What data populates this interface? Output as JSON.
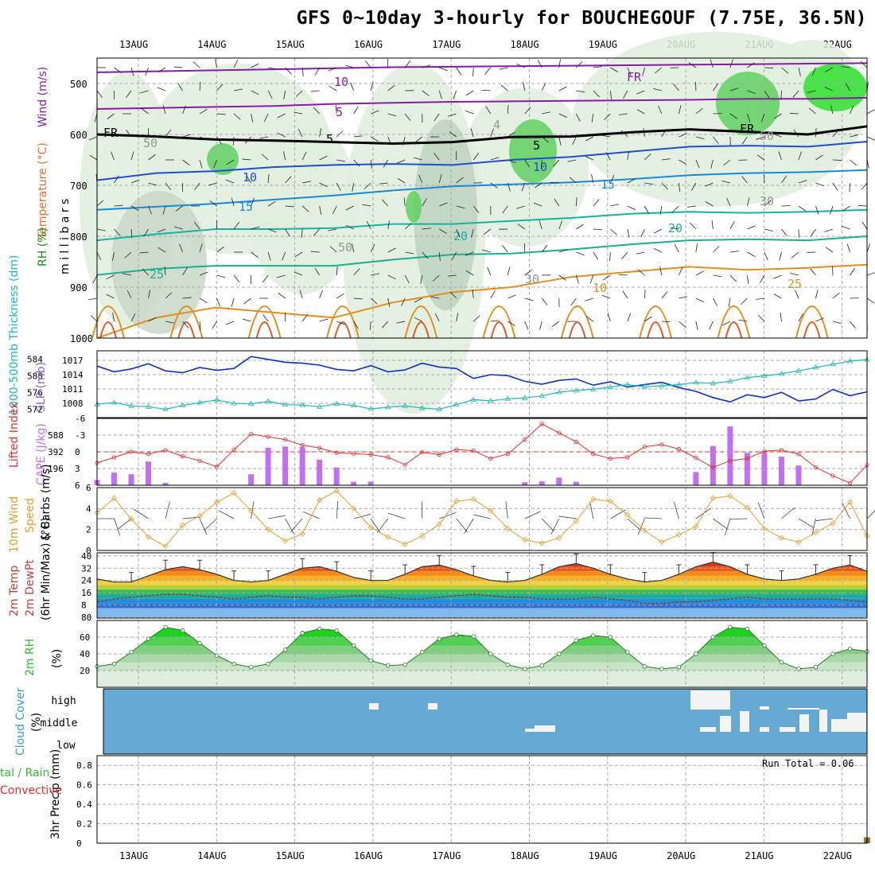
{
  "title": "GFS 0~10day 3-hourly for BOUCHEGOUF (7.75E, 36.5N)",
  "colors": {
    "temp_lines": "#8a1aa8",
    "freezing": "#000000",
    "temp_mid": "#1f4fd0",
    "temp_warm": "#13b5a0",
    "temp_hot": "#e09020",
    "rh_fill": "#2ec02e",
    "slp": "#1030c8",
    "thickness": "#20b8b8",
    "li": "#e03030",
    "cape": "#c070f0",
    "wind": "#e0a030",
    "cloud": "#66aad4",
    "precip_conv": "#e03030",
    "precip_total": "#2ec02e"
  },
  "chart_data": [
    {
      "type": "heatmap",
      "panel": "upper-air",
      "ylabel_parts": [
        "Wind (m/s)",
        "Temperature (°C)",
        "RH (%)"
      ],
      "ylabel_units": "m i l l i b a r s",
      "x_ticks": [
        "13AUG",
        "14AUG",
        "15AUG",
        "16AUG",
        "17AUG",
        "18AUG",
        "19AUG",
        "20AUG",
        "21AUG",
        "22AUG"
      ],
      "y_ticks": [
        "500",
        "600",
        "700",
        "800",
        "900",
        "1000"
      ],
      "ylim": [
        1000,
        450
      ],
      "contour_labels": [
        "10",
        "5",
        "FR",
        "5",
        "10",
        "15",
        "20",
        "25",
        "10",
        "FR",
        "FR",
        "5",
        "10",
        "15",
        "20",
        "25",
        "4",
        "50",
        "50",
        "50",
        "30",
        "30"
      ],
      "isotherms": [
        {
          "level": "-10",
          "p": [
            478,
            476,
            474,
            472,
            470,
            468,
            467,
            466,
            465,
            464,
            463,
            462,
            461,
            460
          ]
        },
        {
          "level": "-5",
          "p": [
            550,
            548,
            546,
            544,
            540,
            538,
            536,
            535,
            534,
            533,
            532,
            530,
            530,
            528
          ]
        },
        {
          "level": "FR",
          "p": [
            600,
            604,
            610,
            612,
            615,
            618,
            615,
            605,
            604,
            596,
            590,
            595,
            600,
            584
          ]
        },
        {
          "level": "5",
          "p": [
            690,
            676,
            672,
            664,
            660,
            658,
            660,
            650,
            644,
            634,
            624,
            622,
            624,
            614
          ]
        },
        {
          "level": "10",
          "p": [
            748,
            742,
            736,
            728,
            720,
            710,
            702,
            698,
            694,
            688,
            680,
            676,
            674,
            670
          ]
        },
        {
          "level": "15",
          "p": [
            808,
            796,
            786,
            786,
            784,
            776,
            776,
            770,
            764,
            756,
            752,
            754,
            752,
            748
          ]
        },
        {
          "level": "20",
          "p": [
            876,
            864,
            858,
            858,
            858,
            846,
            836,
            834,
            826,
            816,
            808,
            806,
            808,
            800
          ]
        },
        {
          "level": "25",
          "p": [
            1000,
            960,
            940,
            950,
            960,
            930,
            910,
            900,
            880,
            870,
            860,
            866,
            862,
            856
          ]
        }
      ]
    },
    {
      "type": "line",
      "panel": "slp-thickness",
      "left_ylabel": "1000-500mb Thickness (dm)",
      "right_ylabel": "SLP (mb)",
      "left_ticks": [
        "584",
        "580",
        "576",
        "572"
      ],
      "right_ticks": [
        "1017",
        "1014",
        "1011",
        "1008"
      ],
      "ylim_thickness": [
        570,
        586
      ],
      "ylim_slp": [
        1005,
        1019
      ],
      "series": [
        {
          "name": "SLP",
          "values": [
            1015.8,
            1014.6,
            1015.2,
            1016.3,
            1014.8,
            1014.4,
            1015.5,
            1014.9,
            1015.3,
            1017.8,
            1017.2,
            1016.6,
            1016.4,
            1016.0,
            1015.1,
            1014.8,
            1015.9,
            1014.6,
            1015.0,
            1016.4,
            1015.6,
            1015.3,
            1013.2,
            1014.0,
            1013.8,
            1012.6,
            1012.0,
            1012.8,
            1013.1,
            1011.8,
            1012.5,
            1011.4,
            1011.9,
            1012.4,
            1011.3,
            1010.5,
            1009.2,
            1008.3,
            1009.8,
            1009.2,
            1010.3,
            1008.5,
            1008.9,
            1010.9,
            1009.6,
            1010.4
          ]
        },
        {
          "name": "Thickness",
          "values": [
            573.2,
            573.6,
            572.8,
            572.6,
            572.0,
            572.9,
            573.6,
            574.2,
            573.4,
            573.3,
            573.9,
            573.1,
            573.0,
            572.6,
            573.3,
            572.9,
            572.1,
            572.5,
            572.8,
            572.3,
            572.0,
            573.1,
            574.3,
            574.0,
            574.5,
            574.7,
            575.2,
            576.1,
            576.5,
            576.8,
            577.3,
            577.9,
            577.4,
            577.6,
            577.9,
            578.4,
            578.2,
            578.7,
            579.6,
            580.0,
            580.5,
            581.2,
            582.0,
            582.8,
            583.5,
            583.9
          ]
        }
      ]
    },
    {
      "type": "bar",
      "panel": "lifted-index-cape",
      "left_ylabel": "Lifted Index",
      "right_ylabel": "CAPE (J/kg)",
      "left_ticks": [
        "-6",
        "-3",
        "0",
        "3",
        "6"
      ],
      "right_ticks": [
        "588",
        "392",
        "196"
      ],
      "ylim_li": [
        6,
        -6
      ],
      "ylim_cape": [
        0,
        784
      ],
      "li": [
        2.0,
        1.0,
        0.0,
        0.4,
        -0.3,
        0.8,
        1.6,
        2.7,
        -0.4,
        -3.2,
        -2.7,
        -2.2,
        -1.2,
        -0.7,
        0.2,
        0.3,
        0.5,
        1.0,
        2.3,
        0.1,
        0.5,
        -0.4,
        -0.2,
        1.2,
        0.4,
        -2.2,
        -5.0,
        -3.4,
        -1.8,
        0.4,
        1.2,
        1.0,
        -0.9,
        -1.3,
        -0.5,
        1.1,
        2.8,
        1.6,
        1.2,
        -0.1,
        -0.3,
        0.4,
        2.8,
        4.3,
        5.6,
        2.4
      ],
      "cape": [
        62,
        148,
        129,
        278,
        28,
        0,
        0,
        0,
        0,
        128,
        440,
        455,
        450,
        300,
        208,
        40,
        42,
        0,
        0,
        0,
        0,
        0,
        0,
        0,
        0,
        35,
        45,
        90,
        40,
        0,
        0,
        0,
        0,
        0,
        0,
        155,
        460,
        690,
        380,
        380,
        335,
        230,
        0,
        0,
        0,
        0
      ]
    },
    {
      "type": "line",
      "panel": "wind-10m",
      "ylabel": "10m Wind Speed & Barbs (m/s)",
      "y_ticks": [
        "6",
        "4",
        "2",
        "0"
      ],
      "ylim": [
        0,
        6
      ],
      "values": [
        3.6,
        5.0,
        3.0,
        1.3,
        0.4,
        2.4,
        3.3,
        4.6,
        5.5,
        3.8,
        2.0,
        0.9,
        1.6,
        4.8,
        5.7,
        4.0,
        2.2,
        1.3,
        0.6,
        1.4,
        2.5,
        4.7,
        4.9,
        3.8,
        2.1,
        1.0,
        0.7,
        1.2,
        2.8,
        4.9,
        4.7,
        3.4,
        1.9,
        0.8,
        1.5,
        2.3,
        5.0,
        5.2,
        4.1,
        2.1,
        1.2,
        0.8,
        1.7,
        2.6,
        4.6,
        1.4
      ]
    },
    {
      "type": "area",
      "panel": "temp-dewpoint-2m",
      "ylabel": "2m Temp 2m DewPt (6hr Min/Max) (°C)",
      "y_ticks": [
        "40",
        "32",
        "24",
        "16",
        "8",
        "80"
      ],
      "ylim": [
        -0.5,
        42
      ],
      "temp": [
        25,
        23,
        23,
        27,
        31,
        33,
        31,
        28,
        24,
        23,
        24,
        28,
        32,
        33,
        30,
        26,
        24,
        24,
        28,
        33,
        34,
        31,
        27,
        24,
        23,
        24,
        28,
        33,
        35,
        32,
        28,
        25,
        23,
        24,
        28,
        33,
        36,
        33,
        28,
        25,
        24,
        25,
        28,
        32,
        34,
        30
      ],
      "dewpt": [
        10,
        12,
        13,
        14,
        15,
        15,
        14,
        13,
        12,
        13,
        14,
        13,
        13,
        12,
        13,
        14,
        14,
        13,
        12,
        12,
        13,
        14,
        15,
        14,
        13,
        13,
        12,
        12,
        12,
        13,
        12,
        11,
        9,
        9,
        10,
        10,
        11,
        12,
        13,
        12,
        12,
        12,
        12,
        12,
        11,
        10
      ]
    },
    {
      "type": "area",
      "panel": "rh-2m",
      "ylabel": "2m RH (%)",
      "y_ticks": [
        "60",
        "40",
        "20"
      ],
      "ylim": [
        0,
        80
      ],
      "values": [
        25,
        28,
        42,
        58,
        72,
        68,
        53,
        38,
        28,
        24,
        28,
        45,
        65,
        70,
        68,
        50,
        32,
        26,
        27,
        42,
        58,
        63,
        61,
        40,
        27,
        22,
        26,
        40,
        56,
        62,
        60,
        42,
        25,
        22,
        24,
        40,
        60,
        72,
        70,
        50,
        30,
        22,
        24,
        40,
        46,
        43
      ]
    },
    {
      "type": "table",
      "panel": "cloud-cover",
      "ylabel": "Cloud Cover (%)",
      "layers": [
        "high",
        "middle",
        "low"
      ]
    },
    {
      "type": "bar",
      "panel": "precip",
      "ylabel": "3hr Precip (mm)",
      "series_labels": [
        "Total / Rain",
        "Convective"
      ],
      "y_ticks": [
        "0.8",
        "0.6",
        "0.4",
        "0.2",
        "0"
      ],
      "ylim": [
        0,
        0.9
      ],
      "run_total_label": "Run Total = 0.06",
      "values": [
        0,
        0,
        0,
        0,
        0,
        0,
        0,
        0,
        0,
        0,
        0,
        0,
        0,
        0,
        0,
        0,
        0,
        0,
        0,
        0,
        0,
        0,
        0,
        0,
        0,
        0,
        0,
        0,
        0,
        0,
        0,
        0,
        0,
        0,
        0,
        0,
        0,
        0,
        0,
        0,
        0,
        0,
        0,
        0,
        0,
        0.06
      ]
    }
  ]
}
